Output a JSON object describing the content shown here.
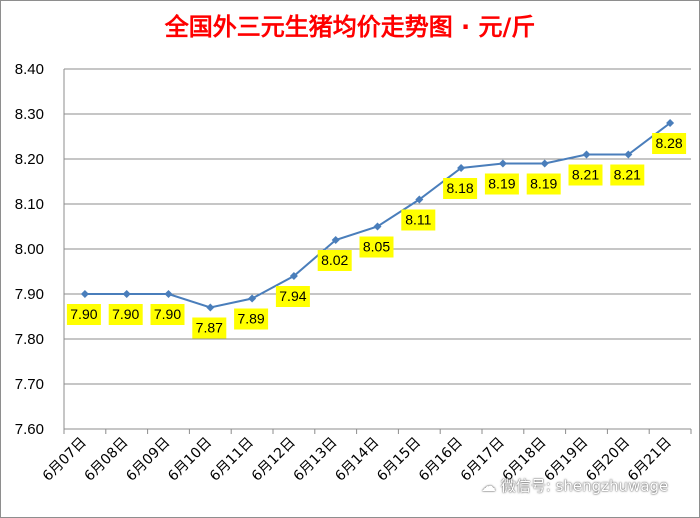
{
  "chart_data": {
    "type": "line",
    "title": "全国外三元生猪均价走势图 · 元/斤",
    "categories": [
      "6月07日",
      "6月08日",
      "6月09日",
      "6月10日",
      "6月11日",
      "6月12日",
      "6月13日",
      "6月14日",
      "6月15日",
      "6月16日",
      "6月17日",
      "6月18日",
      "6月19日",
      "6月20日",
      "6月21日"
    ],
    "series": [
      {
        "values": [
          7.9,
          7.9,
          7.9,
          7.87,
          7.89,
          7.94,
          8.02,
          8.05,
          8.11,
          8.18,
          8.19,
          8.19,
          8.21,
          8.21,
          8.28
        ]
      }
    ],
    "data_labels": [
      "7.90",
      "7.90",
      "7.90",
      "7.87",
      "7.89",
      "7.94",
      "8.02",
      "8.05",
      "8.11",
      "8.18",
      "8.19",
      "8.19",
      "8.21",
      "8.21",
      "8.28"
    ],
    "ylim": [
      7.6,
      8.4
    ],
    "yticks": [
      "7.60",
      "7.70",
      "7.80",
      "7.90",
      "8.00",
      "8.10",
      "8.20",
      "8.30",
      "8.40"
    ],
    "grid": true,
    "line_color": "#4a7ebb",
    "label_bg": "#ffff00"
  },
  "watermark": "微信号: shengzhuwage"
}
